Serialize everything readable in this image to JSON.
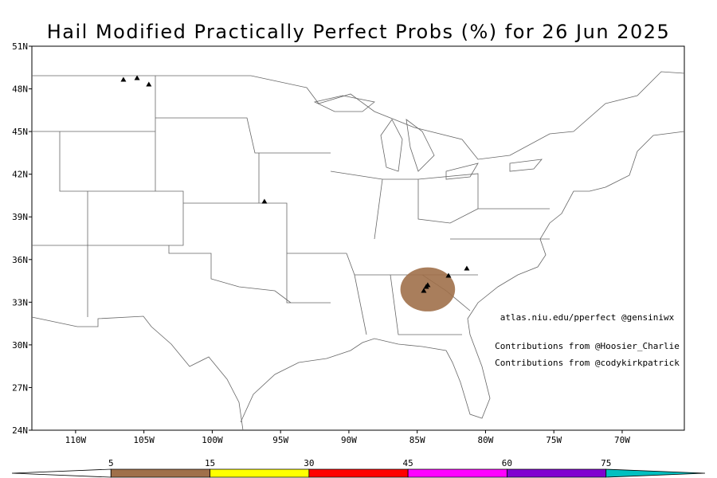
{
  "map": {
    "title": "Hail Modified Practically Perfect Probs (%) for 26 Jun 2025",
    "lon_range": [
      -113.2,
      -65.45
    ],
    "lat_range": [
      24,
      51
    ],
    "lat_ticks": [
      {
        "value": 51,
        "label": "51N"
      },
      {
        "value": 48,
        "label": "48N"
      },
      {
        "value": 45,
        "label": "45N"
      },
      {
        "value": 42,
        "label": "42N"
      },
      {
        "value": 39,
        "label": "39N"
      },
      {
        "value": 36,
        "label": "36N"
      },
      {
        "value": 33,
        "label": "33N"
      },
      {
        "value": 30,
        "label": "30N"
      },
      {
        "value": 27,
        "label": "27N"
      },
      {
        "value": 24,
        "label": "24N"
      }
    ],
    "lon_ticks": [
      {
        "value": -110,
        "label": "110W"
      },
      {
        "value": -105,
        "label": "105W"
      },
      {
        "value": -100,
        "label": "100W"
      },
      {
        "value": -95,
        "label": "95W"
      },
      {
        "value": -90,
        "label": "90W"
      },
      {
        "value": -85,
        "label": "85W"
      },
      {
        "value": -80,
        "label": "80W"
      },
      {
        "value": -75,
        "label": "75W"
      },
      {
        "value": -70,
        "label": "70W"
      }
    ],
    "annotations": [
      "atlas.niu.edu/pperfect @gensiniwx",
      "Contributions from @Hoosier_Charlie",
      "Contributions from @codykirkpatrick"
    ],
    "probability_areas": [
      {
        "level": 5,
        "center_lon": -84.23,
        "center_lat": 33.9,
        "radius_lon": 2.0,
        "radius_lat": 1.55
      }
    ],
    "hail_reports": {
      "lon": [
        -106.5,
        -105.5,
        -104.64,
        -96.18,
        -84.34,
        -84.52,
        -84.23,
        -82.71,
        -81.37
      ],
      "lat": [
        48.65,
        48.76,
        48.31,
        40.08,
        34.08,
        33.8,
        34.2,
        34.87,
        35.37
      ]
    },
    "colorbar": {
      "levels": [
        5,
        15,
        30,
        45,
        60,
        75
      ],
      "colors": [
        "#ffffff",
        "#a0704a",
        "#ffff00",
        "#ff0000",
        "#ff00ff",
        "#8000d0",
        "#00c0c0"
      ]
    }
  }
}
